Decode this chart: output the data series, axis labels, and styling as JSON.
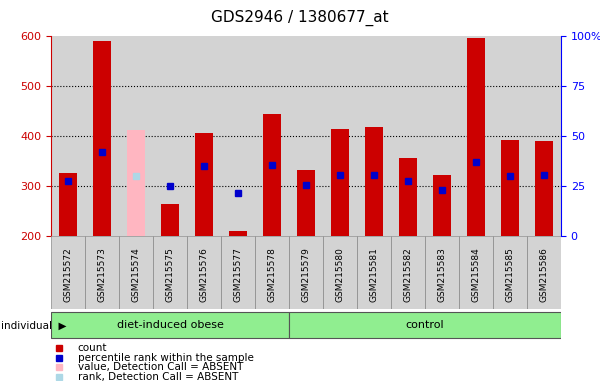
{
  "title": "GDS2946 / 1380677_at",
  "samples": [
    "GSM215572",
    "GSM215573",
    "GSM215574",
    "GSM215575",
    "GSM215576",
    "GSM215577",
    "GSM215578",
    "GSM215579",
    "GSM215580",
    "GSM215581",
    "GSM215582",
    "GSM215583",
    "GSM215584",
    "GSM215585",
    "GSM215586"
  ],
  "counts": [
    327,
    591,
    413,
    265,
    406,
    210,
    445,
    333,
    415,
    418,
    357,
    323,
    597,
    393,
    390
  ],
  "ranks": [
    310,
    368,
    320,
    300,
    340,
    287,
    343,
    303,
    322,
    322,
    310,
    293,
    349,
    320,
    322
  ],
  "absent": [
    false,
    false,
    true,
    false,
    false,
    false,
    false,
    false,
    false,
    false,
    false,
    false,
    false,
    false,
    false
  ],
  "groups": [
    "diet-induced obese",
    "diet-induced obese",
    "diet-induced obese",
    "diet-induced obese",
    "diet-induced obese",
    "diet-induced obese",
    "diet-induced obese",
    "control",
    "control",
    "control",
    "control",
    "control",
    "control",
    "control",
    "control"
  ],
  "bar_color_present": "#cc0000",
  "bar_color_absent": "#ffb6c1",
  "rank_color_present": "#0000cc",
  "rank_color_absent": "#add8e6",
  "ylim_left": [
    200,
    600
  ],
  "ylim_right": [
    0,
    100
  ],
  "yticks_left": [
    200,
    300,
    400,
    500,
    600
  ],
  "yticks_right": [
    0,
    25,
    50,
    75,
    100
  ],
  "background_color": "#d3d3d3",
  "group_fill": "#90EE90",
  "legend_items": [
    {
      "label": "count",
      "color": "#cc0000",
      "marker": "s"
    },
    {
      "label": "percentile rank within the sample",
      "color": "#0000cc",
      "marker": "s"
    },
    {
      "label": "value, Detection Call = ABSENT",
      "color": "#ffb6c1",
      "marker": "s"
    },
    {
      "label": "rank, Detection Call = ABSENT",
      "color": "#add8e6",
      "marker": "s"
    }
  ]
}
